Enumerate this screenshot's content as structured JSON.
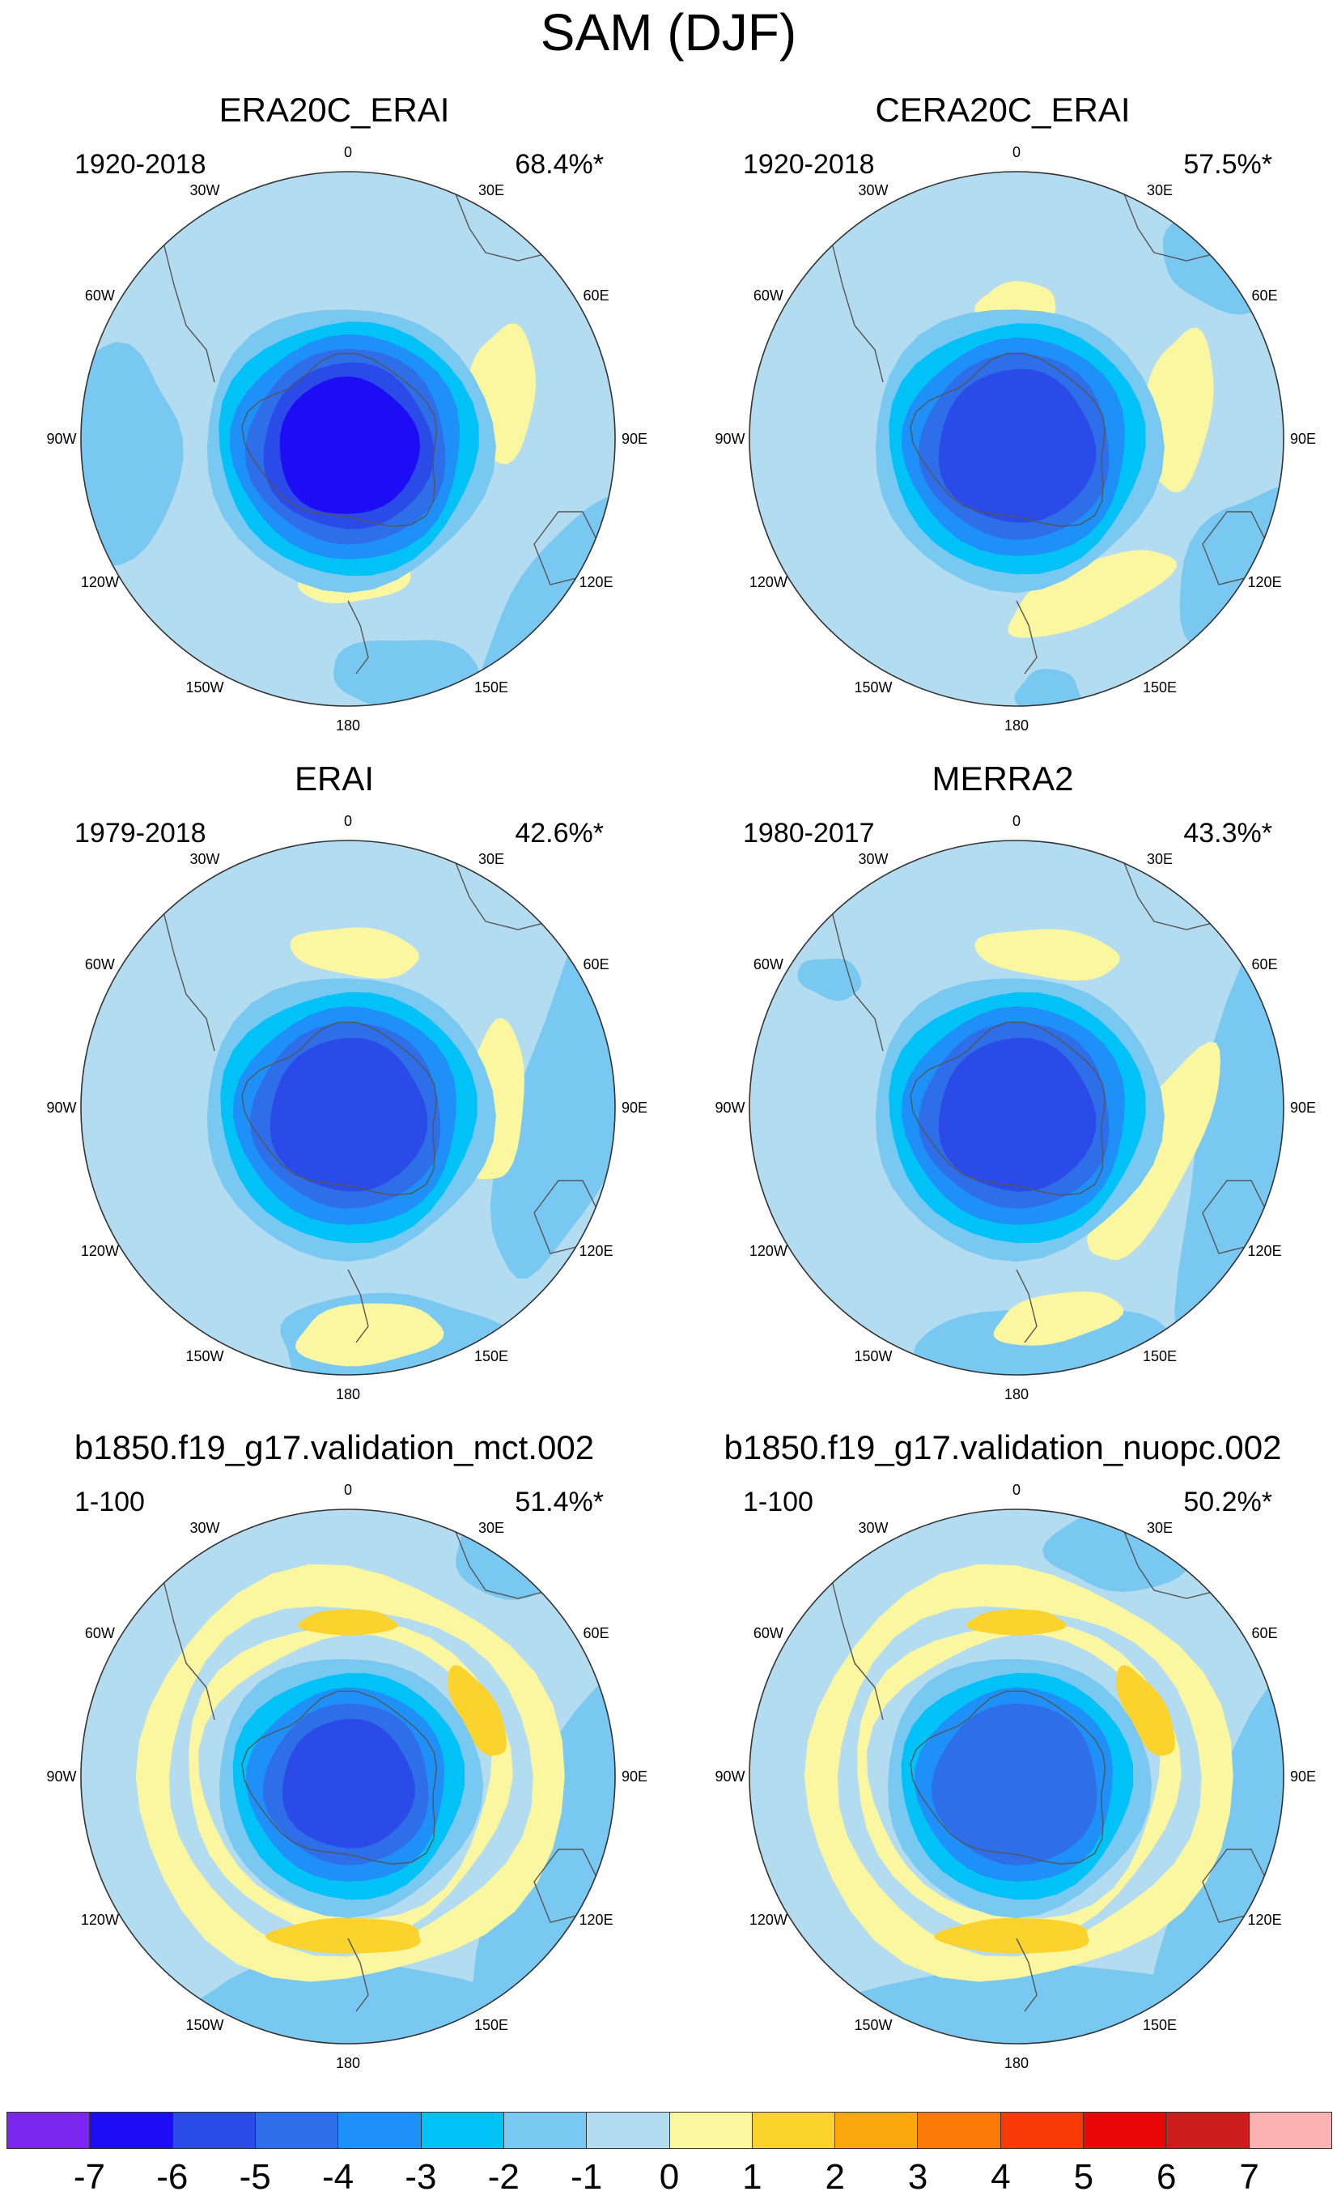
{
  "title": "SAM (DJF)",
  "panels": [
    {
      "name": "ERA20C_ERAI",
      "period": "1920-2018",
      "percent": "68.4%*",
      "intensity": 5
    },
    {
      "name": "CERA20C_ERAI",
      "period": "1920-2018",
      "percent": "57.5%*",
      "intensity": 4
    },
    {
      "name": "ERAI",
      "period": "1979-2018",
      "percent": "42.6%*",
      "intensity": 4
    },
    {
      "name": "MERRA2",
      "period": "1980-2017",
      "percent": "43.3%*",
      "intensity": 4
    },
    {
      "name": "b1850.f19_g17.validation_mct.002",
      "period": "1-100",
      "percent": "51.4%*",
      "intensity": 4
    },
    {
      "name": "b1850.f19_g17.validation_nuopc.002",
      "period": "1-100",
      "percent": "50.2%*",
      "intensity": 3
    }
  ],
  "longitude_labels": [
    "0",
    "30E",
    "60E",
    "90E",
    "120E",
    "150E",
    "180",
    "150W",
    "120W",
    "90W",
    "60W",
    "30W"
  ],
  "colorbar": {
    "colors": [
      "#7d26f0",
      "#1d0df5",
      "#2b4be8",
      "#2f6ee9",
      "#1e90f8",
      "#00c2f7",
      "#79c8f1",
      "#b3dcf0",
      "#fbf6a0",
      "#fcd22d",
      "#fba80f",
      "#fa7a09",
      "#f93a06",
      "#ec0707",
      "#cc1c1c",
      "#fbb2b2"
    ],
    "ticks": [
      "-7",
      "-6",
      "-5",
      "-4",
      "-3",
      "-2",
      "-1",
      "0",
      "1",
      "2",
      "3",
      "4",
      "5",
      "6",
      "7"
    ]
  }
}
